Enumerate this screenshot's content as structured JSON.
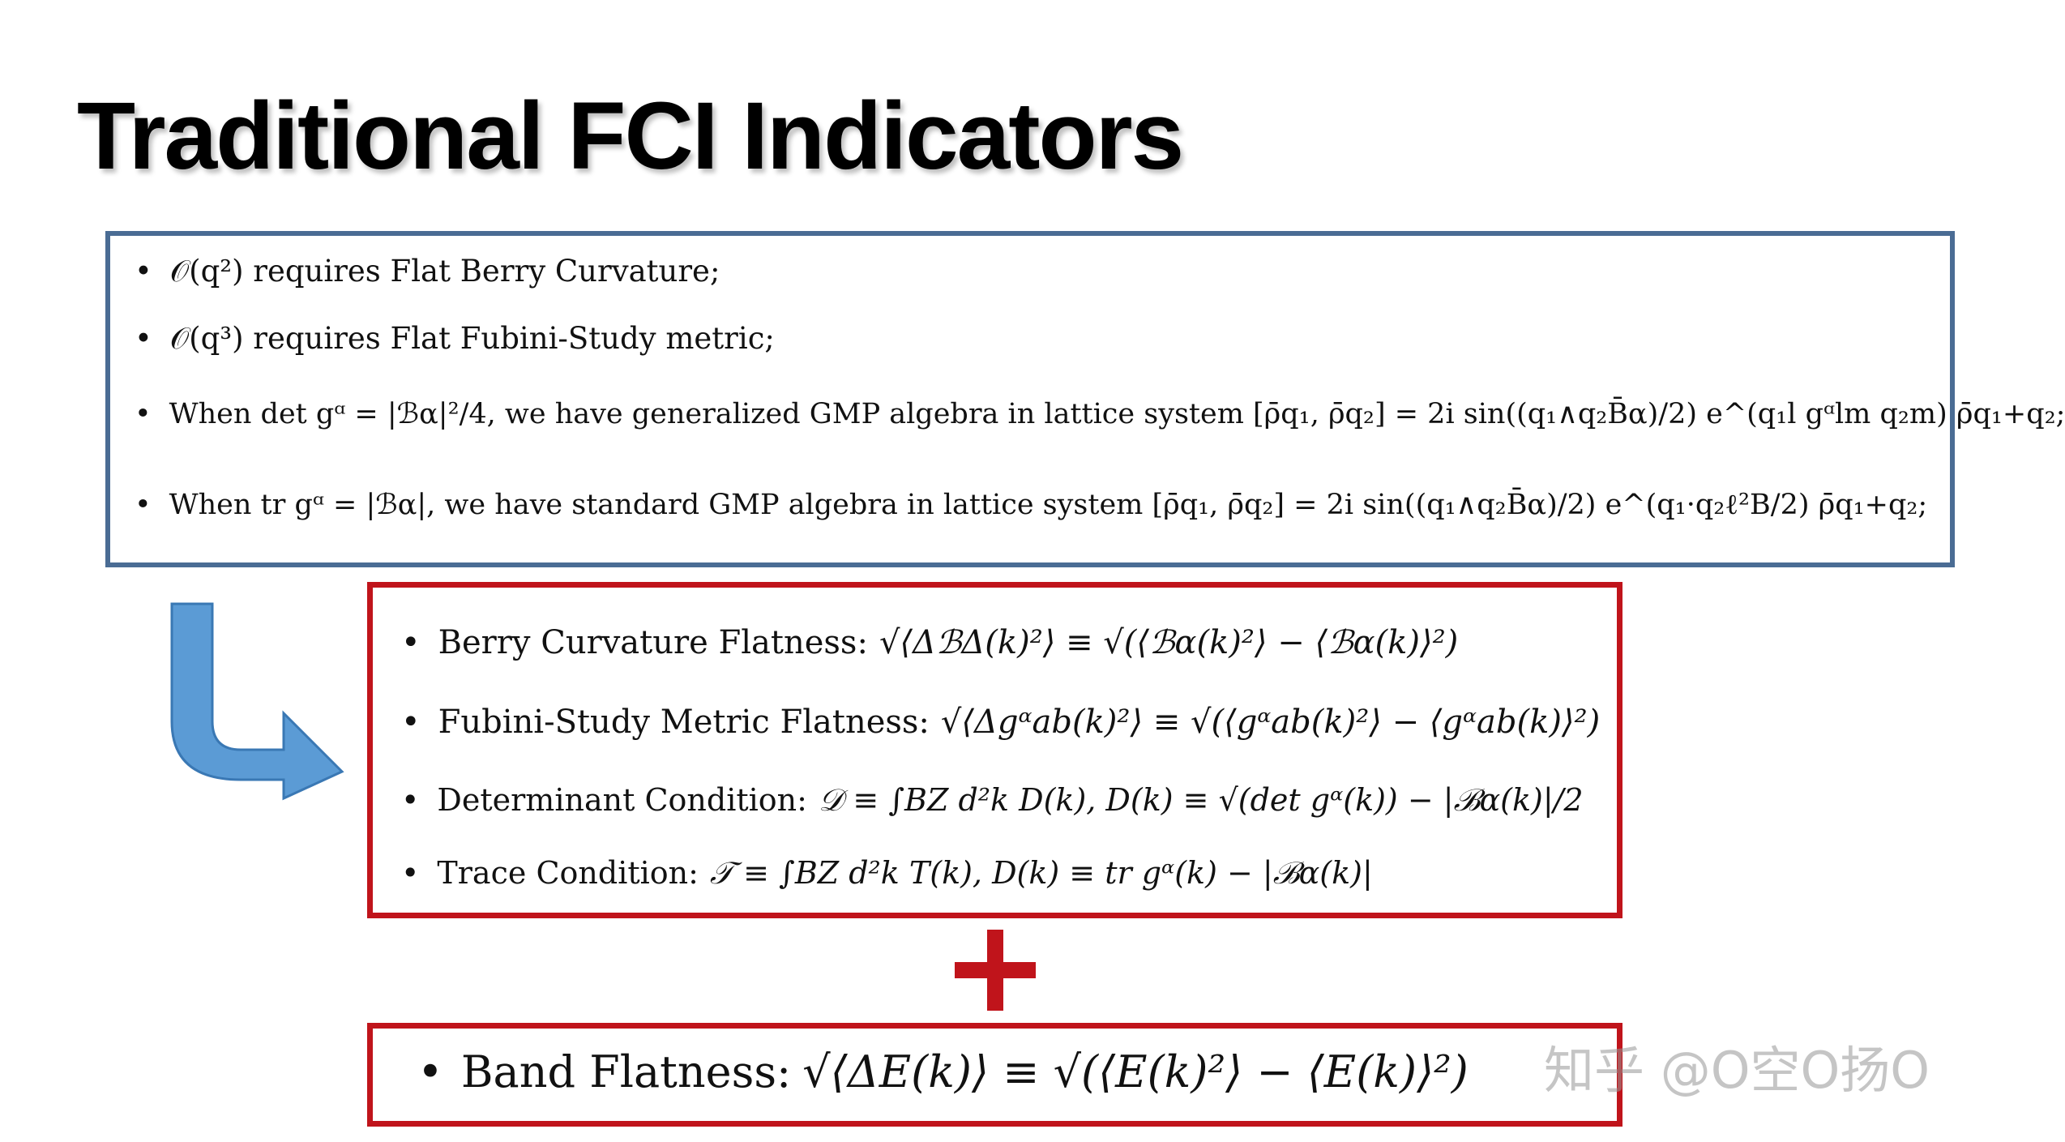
{
  "title": "Traditional FCI Indicators",
  "bullet": "•",
  "blue_box": {
    "items": [
      {
        "text": "𝒪(q²) requires Flat Berry Curvature;"
      },
      {
        "text": "𝒪(q³) requires Flat Fubini-Study metric;"
      },
      {
        "text": "When det gᵅ = |ℬα|²/4, we have generalized GMP algebra in lattice system [ρ̄q₁, ρ̄q₂] = 2i sin((q₁∧q₂B̄α)/2) e^(q₁l gᵅlm q₂m) ρ̄q₁+q₂;"
      },
      {
        "text": "When tr gᵅ = |ℬα|, we have standard GMP algebra in lattice system [ρ̄q₁, ρ̄q₂] = 2i sin((q₁∧q₂B̄α)/2) e^(q₁·q₂ℓ²B/2) ρ̄q₁+q₂;"
      }
    ]
  },
  "red_box": {
    "items": [
      {
        "label": "Berry Curvature Flatness:",
        "formula": "√⟨ΔℬΔ(k)²⟩ ≡ √(⟨ℬα(k)²⟩ − ⟨ℬα(k)⟩²)"
      },
      {
        "label": "Fubini-Study Metric Flatness:",
        "formula": "√⟨Δgᵅab(k)²⟩ ≡ √(⟨gᵅab(k)²⟩ − ⟨gᵅab(k)⟩²)"
      },
      {
        "label": "Determinant Condition:",
        "formula": "𝒟 ≡ ∫BZ d²k D(k), D(k) ≡ √(det gᵅ(k)) − |ℬα(k)|/2"
      },
      {
        "label": "Trace Condition:",
        "formula": "𝒯 ≡ ∫BZ d²k T(k), D(k) ≡ tr gᵅ(k) − |ℬα(k)|"
      }
    ]
  },
  "band_box": {
    "label": "Band Flatness:",
    "formula": "√⟨ΔE(k)⟩ ≡ √(⟨E(k)²⟩ − ⟨E(k)⟩²)"
  },
  "watermark": "知乎 @O空O扬O",
  "colors": {
    "blue_border": "#4a6c94",
    "red_border": "#c0141b",
    "arrow_fill": "#5b9bd5"
  },
  "icons": {
    "arrow": "curved-arrow-icon",
    "plus": "plus-icon"
  }
}
